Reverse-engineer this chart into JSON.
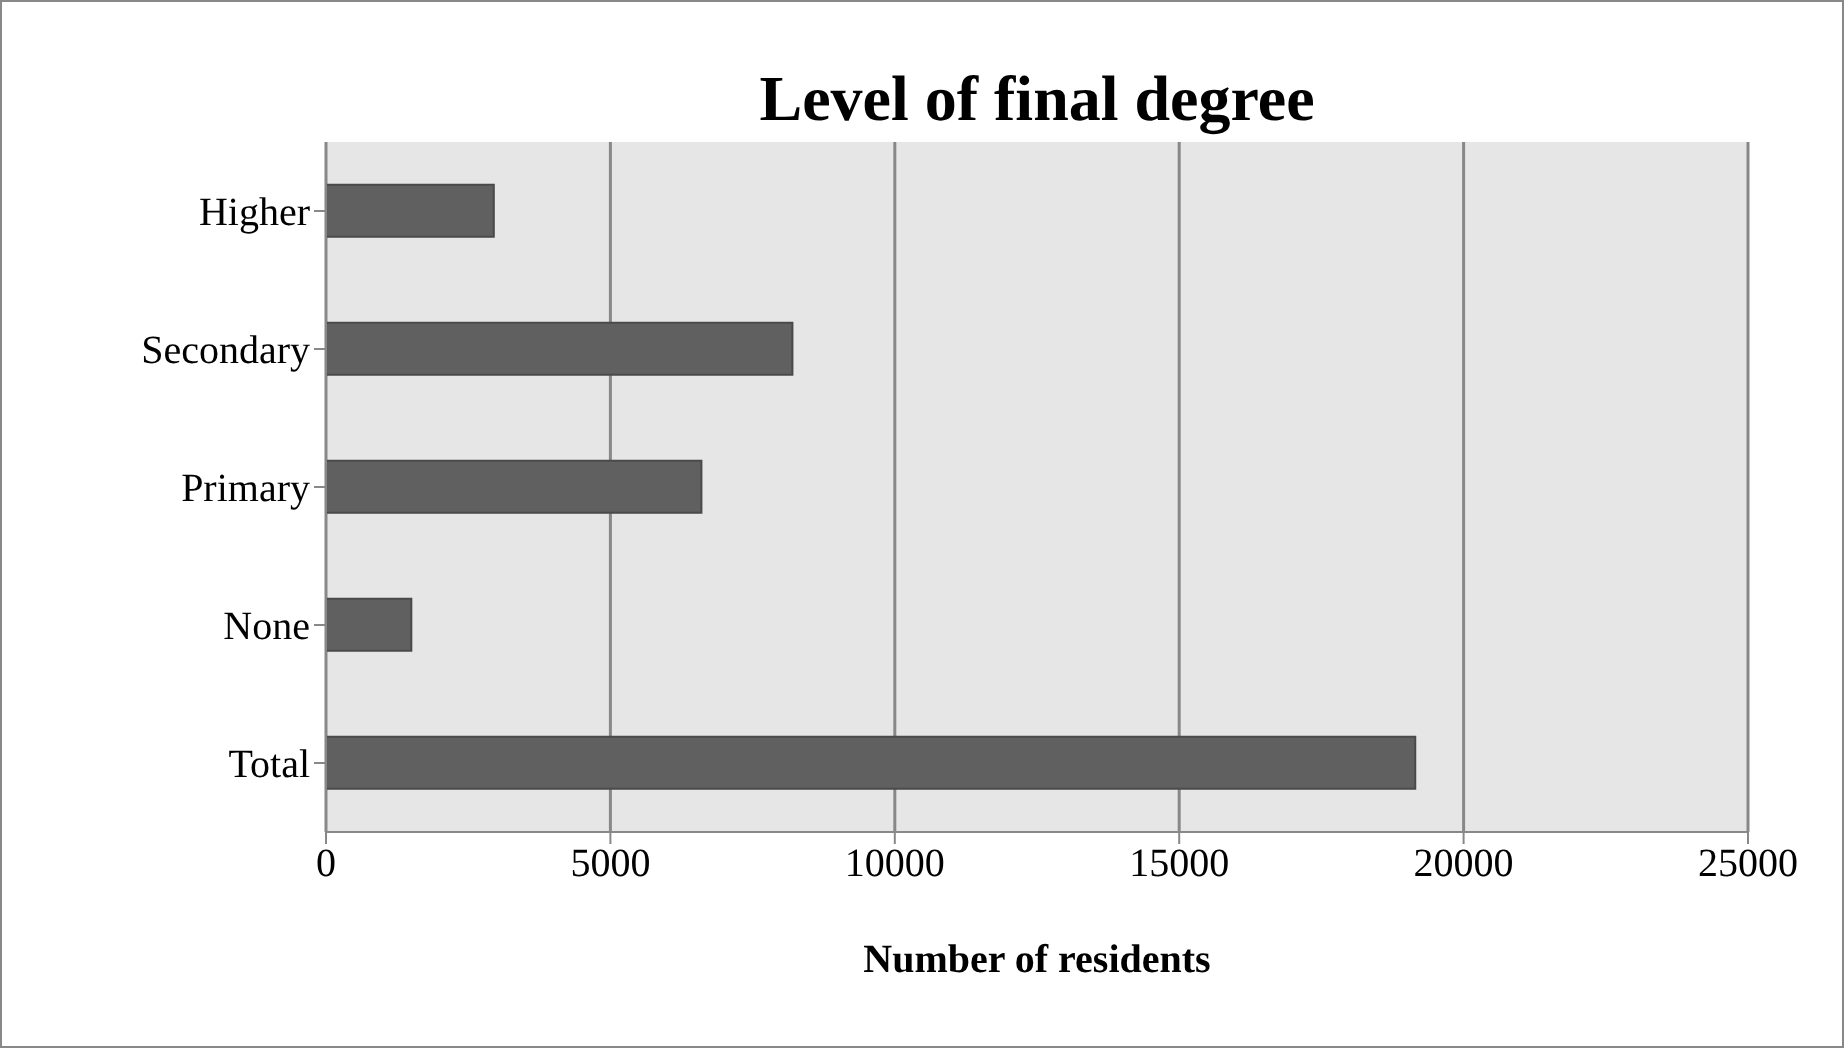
{
  "chart_data": {
    "type": "bar",
    "orientation": "horizontal",
    "title": "Level of final degree",
    "xlabel": "Number of residents",
    "categories": [
      "Higher",
      "Secondary",
      "Primary",
      "None",
      "Total"
    ],
    "values": [
      2950,
      8200,
      6600,
      1500,
      19150
    ],
    "color": "#606060",
    "xlim": [
      0,
      25000
    ],
    "xticks": [
      0,
      5000,
      10000,
      15000,
      20000,
      25000
    ],
    "grid": "x",
    "legend": false
  }
}
